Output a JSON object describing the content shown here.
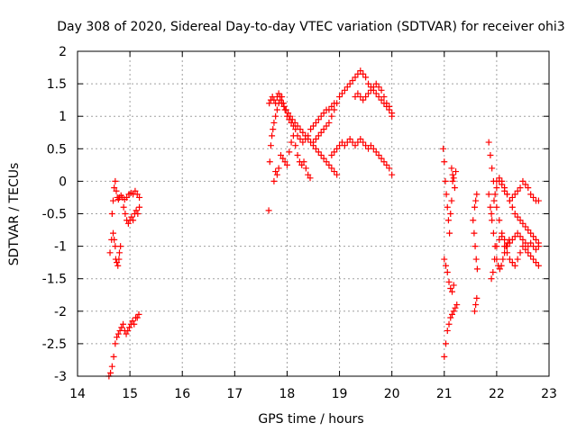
{
  "chart_data": {
    "type": "scatter",
    "title": "Day 308 of 2020, Sidereal Day-to-day VTEC variation (SDTVAR) for receiver ohi3",
    "xlabel": "GPS time / hours",
    "ylabel": "SDTVAR / TECUs",
    "xlim": [
      14,
      23
    ],
    "ylim": [
      -3,
      2
    ],
    "xticks": [
      14,
      15,
      16,
      17,
      18,
      19,
      20,
      21,
      22,
      23
    ],
    "xtick_labels": [
      "14",
      "15",
      "16",
      "17",
      "18",
      "19",
      "20",
      "21",
      "22",
      "23"
    ],
    "yticks": [
      -3,
      -2.5,
      -2,
      -1.5,
      -1,
      -0.5,
      0,
      0.5,
      1,
      1.5,
      2
    ],
    "ytick_labels": [
      "-3",
      "-2.5",
      "-2",
      "-1.5",
      "-1",
      "-0.5",
      "0",
      "0.5",
      "1",
      "1.5",
      "2"
    ],
    "grid": true,
    "marker": "+",
    "color": "#ff0000",
    "series": [
      {
        "name": "s1",
        "x": [
          14.62,
          14.65,
          14.68,
          14.7,
          14.72,
          14.73,
          14.75,
          14.77,
          14.79,
          14.8,
          14.82
        ],
        "y": [
          -1.1,
          -0.9,
          -0.8,
          -0.9,
          -1.0,
          -1.2,
          -1.25,
          -1.3,
          -1.2,
          -1.1,
          -1.0
        ]
      },
      {
        "name": "s2",
        "x": [
          14.66,
          14.68,
          14.7,
          14.72,
          14.74,
          14.76,
          14.78,
          14.8,
          14.83,
          14.86,
          14.9,
          14.94,
          14.98,
          15.02,
          15.06,
          15.1,
          15.14,
          15.18
        ],
        "y": [
          -0.5,
          -0.3,
          -0.1,
          0.0,
          -0.15,
          -0.25,
          -0.28,
          -0.25,
          -0.22,
          -0.25,
          -0.28,
          -0.25,
          -0.2,
          -0.18,
          -0.2,
          -0.15,
          -0.2,
          -0.25
        ]
      },
      {
        "name": "s3",
        "x": [
          14.88,
          14.91,
          14.94,
          14.97,
          15.0,
          15.03,
          15.06,
          15.09,
          15.12,
          15.15,
          15.18
        ],
        "y": [
          -0.4,
          -0.5,
          -0.6,
          -0.65,
          -0.6,
          -0.55,
          -0.6,
          -0.5,
          -0.45,
          -0.5,
          -0.4
        ]
      },
      {
        "name": "s4",
        "x": [
          14.6,
          14.63,
          14.66,
          14.69,
          14.72,
          14.75,
          14.78,
          14.81,
          14.84,
          14.87,
          14.9,
          14.93,
          14.96,
          14.99,
          15.02,
          15.05,
          15.08,
          15.11,
          15.14,
          15.17
        ],
        "y": [
          -3.0,
          -2.95,
          -2.85,
          -2.7,
          -2.5,
          -2.4,
          -2.35,
          -2.3,
          -2.25,
          -2.2,
          -2.3,
          -2.35,
          -2.3,
          -2.25,
          -2.2,
          -2.15,
          -2.2,
          -2.1,
          -2.1,
          -2.05
        ]
      },
      {
        "name": "s5",
        "x": [
          17.65,
          17.67,
          17.69,
          17.71,
          17.73,
          17.75,
          17.78,
          17.81,
          17.84,
          17.87,
          17.9,
          17.93,
          17.96,
          18.0,
          18.04,
          18.08,
          18.12,
          18.16,
          18.2,
          18.25,
          18.3,
          18.35,
          18.4,
          18.45,
          18.5,
          18.55,
          18.6,
          18.65,
          18.7,
          18.75,
          18.8,
          18.85,
          18.9
        ],
        "y": [
          -0.45,
          0.3,
          0.55,
          0.7,
          0.8,
          0.9,
          1.0,
          1.1,
          1.2,
          1.25,
          1.3,
          1.2,
          1.1,
          1.0,
          0.95,
          0.9,
          0.85,
          0.8,
          0.7,
          0.65,
          0.6,
          0.65,
          0.7,
          0.8,
          0.85,
          0.9,
          0.95,
          1.0,
          1.05,
          1.1,
          1.1,
          1.15,
          1.2
        ]
      },
      {
        "name": "s6",
        "x": [
          17.66,
          17.69,
          17.72,
          17.75,
          17.78,
          17.81,
          17.84,
          17.87,
          17.9,
          17.94,
          17.98,
          18.02,
          18.06,
          18.1,
          18.15,
          18.2,
          18.25,
          18.3,
          18.35,
          18.4,
          18.45,
          18.5,
          18.55,
          18.6,
          18.65,
          18.7,
          18.75,
          18.8,
          18.85,
          18.9,
          18.95
        ],
        "y": [
          1.2,
          1.25,
          1.3,
          1.25,
          1.2,
          1.3,
          1.35,
          1.3,
          1.2,
          1.15,
          1.1,
          1.05,
          1.0,
          0.95,
          0.9,
          0.85,
          0.8,
          0.75,
          0.7,
          0.65,
          0.6,
          0.55,
          0.5,
          0.45,
          0.4,
          0.35,
          0.3,
          0.25,
          0.2,
          0.15,
          0.1
        ]
      },
      {
        "name": "s7",
        "x": [
          17.75,
          17.78,
          17.81,
          17.84,
          17.88,
          17.92,
          17.96,
          18.0,
          18.04,
          18.08,
          18.12,
          18.16,
          18.2,
          18.24,
          18.28,
          18.32,
          18.36,
          18.4,
          18.44
        ],
        "y": [
          0.0,
          0.15,
          0.1,
          0.2,
          0.4,
          0.35,
          0.3,
          0.25,
          0.45,
          0.6,
          0.7,
          0.55,
          0.4,
          0.3,
          0.25,
          0.3,
          0.2,
          0.1,
          0.05
        ]
      },
      {
        "name": "s8",
        "x": [
          18.5,
          18.55,
          18.6,
          18.65,
          18.7,
          18.75,
          18.8,
          18.85,
          18.9,
          18.95,
          19.0,
          19.05,
          19.1,
          19.15,
          19.2,
          19.25,
          19.3,
          19.35,
          19.4,
          19.45,
          19.5,
          19.55,
          19.6,
          19.65,
          19.7,
          19.75,
          19.8,
          19.85,
          19.9,
          19.95,
          20.0
        ],
        "y": [
          0.6,
          0.65,
          0.7,
          0.75,
          0.8,
          0.85,
          0.9,
          1.0,
          1.1,
          1.2,
          1.3,
          1.35,
          1.4,
          1.45,
          1.5,
          1.55,
          1.6,
          1.65,
          1.7,
          1.65,
          1.6,
          1.5,
          1.45,
          1.4,
          1.35,
          1.3,
          1.25,
          1.2,
          1.15,
          1.1,
          1.05
        ]
      },
      {
        "name": "s9",
        "x": [
          18.85,
          18.9,
          18.95,
          19.0,
          19.05,
          19.1,
          19.15,
          19.2,
          19.25,
          19.3,
          19.35,
          19.4,
          19.45,
          19.5,
          19.55,
          19.6,
          19.65,
          19.7,
          19.75,
          19.8,
          19.85,
          19.9,
          19.95,
          20.0
        ],
        "y": [
          0.4,
          0.45,
          0.5,
          0.55,
          0.6,
          0.55,
          0.6,
          0.65,
          0.6,
          0.55,
          0.6,
          0.65,
          0.6,
          0.55,
          0.5,
          0.55,
          0.5,
          0.45,
          0.4,
          0.35,
          0.3,
          0.25,
          0.2,
          0.1
        ]
      },
      {
        "name": "s10",
        "x": [
          19.3,
          19.35,
          19.4,
          19.45,
          19.5,
          19.55,
          19.6,
          19.65,
          19.7,
          19.75,
          19.8,
          19.85,
          19.9,
          19.95,
          20.0
        ],
        "y": [
          1.3,
          1.35,
          1.3,
          1.25,
          1.3,
          1.35,
          1.4,
          1.45,
          1.5,
          1.45,
          1.4,
          1.3,
          1.2,
          1.15,
          1.0
        ]
      },
      {
        "name": "s11",
        "x": [
          20.98,
          21.0,
          21.02,
          21.04,
          21.06,
          21.08,
          21.1,
          21.12,
          21.14,
          21.16
        ],
        "y": [
          0.5,
          0.3,
          0.0,
          -0.2,
          -0.4,
          -0.6,
          -0.8,
          -0.5,
          -0.3,
          0.0
        ]
      },
      {
        "name": "s12",
        "x": [
          21.14,
          21.16,
          21.18,
          21.2,
          21.22
        ],
        "y": [
          0.2,
          0.1,
          0.05,
          -0.1,
          0.15
        ]
      },
      {
        "name": "s13",
        "x": [
          21.0,
          21.03,
          21.06,
          21.09,
          21.12,
          21.15,
          21.18
        ],
        "y": [
          -1.2,
          -1.3,
          -1.4,
          -1.55,
          -1.65,
          -1.7,
          -1.6
        ]
      },
      {
        "name": "s14",
        "x": [
          21.0,
          21.03,
          21.06,
          21.09,
          21.12,
          21.15,
          21.18,
          21.21,
          21.24
        ],
        "y": [
          -2.7,
          -2.5,
          -2.3,
          -2.2,
          -2.1,
          -2.05,
          -2.0,
          -1.95,
          -1.9
        ]
      },
      {
        "name": "s15",
        "x": [
          21.55,
          21.57,
          21.59,
          21.61,
          21.63
        ],
        "y": [
          -0.6,
          -0.8,
          -1.0,
          -1.2,
          -1.35
        ]
      },
      {
        "name": "s16",
        "x": [
          21.58,
          21.6,
          21.62
        ],
        "y": [
          -2.0,
          -1.9,
          -1.8
        ]
      },
      {
        "name": "s17",
        "x": [
          21.58,
          21.6,
          21.62
        ],
        "y": [
          -0.4,
          -0.3,
          -0.2
        ]
      },
      {
        "name": "s18",
        "x": [
          21.85,
          21.88,
          21.91,
          21.94,
          21.97,
          22.0,
          22.05,
          22.1,
          22.15,
          22.2,
          22.25,
          22.3,
          22.35,
          22.4,
          22.45,
          22.5,
          22.55,
          22.6,
          22.65,
          22.7,
          22.75,
          22.8
        ],
        "y": [
          0.6,
          0.4,
          0.2,
          0.0,
          -0.2,
          -0.4,
          -0.6,
          -0.8,
          -1.0,
          -1.1,
          -1.2,
          -1.25,
          -1.3,
          -1.2,
          -1.1,
          -1.0,
          -1.05,
          -1.1,
          -1.15,
          -1.2,
          -1.25,
          -1.3
        ]
      },
      {
        "name": "s19",
        "x": [
          21.9,
          21.93,
          21.96,
          22.0,
          22.05,
          22.1,
          22.15,
          22.2,
          22.25,
          22.3,
          22.35,
          22.4,
          22.45,
          22.5,
          22.55,
          22.6,
          22.65,
          22.7,
          22.75,
          22.8
        ],
        "y": [
          -1.5,
          -1.4,
          -1.2,
          -1.0,
          -0.9,
          -0.85,
          -0.9,
          -1.0,
          -0.95,
          -0.9,
          -0.85,
          -0.8,
          -0.85,
          -0.9,
          -0.95,
          -1.0,
          -0.95,
          -1.0,
          -1.05,
          -1.0
        ]
      },
      {
        "name": "s20",
        "x": [
          21.9,
          21.95,
          22.0,
          22.05,
          22.1,
          22.15,
          22.2,
          22.25,
          22.3,
          22.35,
          22.4,
          22.45,
          22.5,
          22.55,
          22.6,
          22.65,
          22.7,
          22.75,
          22.8
        ],
        "y": [
          -0.5,
          -0.3,
          -0.1,
          0.0,
          -0.05,
          -0.15,
          -0.2,
          -0.3,
          -0.4,
          -0.5,
          -0.55,
          -0.6,
          -0.65,
          -0.7,
          -0.75,
          -0.8,
          -0.85,
          -0.9,
          -0.95
        ]
      },
      {
        "name": "s21",
        "x": [
          22.0,
          22.05,
          22.1,
          22.15,
          22.2,
          22.25,
          22.3,
          22.35,
          22.4,
          22.45,
          22.5,
          22.55,
          22.6,
          22.65,
          22.7,
          22.75,
          22.8
        ],
        "y": [
          0.0,
          0.05,
          0.0,
          -0.1,
          -0.2,
          -0.3,
          -0.25,
          -0.2,
          -0.15,
          -0.1,
          0.0,
          -0.05,
          -0.1,
          -0.2,
          -0.25,
          -0.3,
          -0.3
        ]
      },
      {
        "name": "s22",
        "x": [
          21.85,
          21.88,
          21.91,
          21.94,
          21.97,
          22.0,
          22.03,
          22.06,
          22.09,
          22.12,
          22.15,
          22.18,
          22.21,
          22.24
        ],
        "y": [
          -0.2,
          -0.4,
          -0.6,
          -0.8,
          -1.0,
          -1.2,
          -1.3,
          -1.35,
          -1.3,
          -1.2,
          -1.1,
          -1.0,
          -0.95,
          -0.9
        ]
      }
    ]
  }
}
